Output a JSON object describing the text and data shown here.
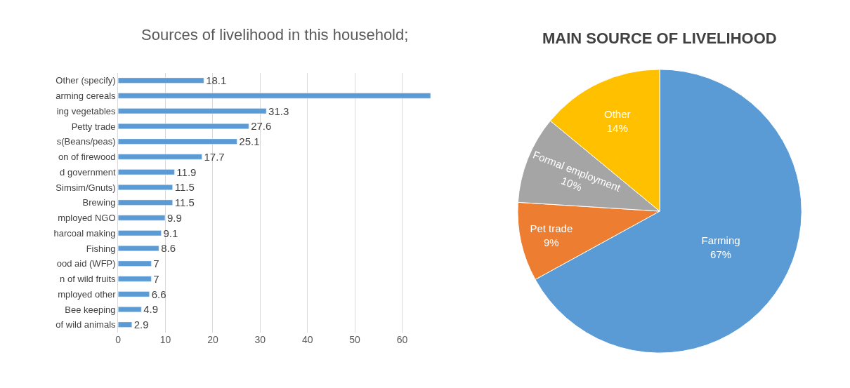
{
  "chart_data": [
    {
      "type": "bar",
      "orientation": "horizontal",
      "title": "Sources of livelihood in this household;",
      "categories": [
        "Other (specify)",
        "arming cereals",
        "ing vegetables",
        "Petty trade",
        "s(Beans/peas)",
        "on of firewood",
        "d government",
        "Simsim/Gnuts)",
        "Brewing",
        "mployed NGO",
        "harcoal making",
        "Fishing",
        "ood aid (WFP)",
        "n of wild fruits",
        "mployed other",
        "Bee keeping",
        "of wild animals"
      ],
      "values": [
        18.1,
        66,
        31.3,
        27.6,
        25.1,
        17.7,
        11.9,
        11.5,
        11.5,
        9.9,
        9.1,
        8.6,
        7,
        7,
        6.6,
        4.9,
        2.9
      ],
      "value_labels": [
        "18.1",
        null,
        "31.3",
        "27.6",
        "25.1",
        "17.7",
        "11.9",
        "11.5",
        "11.5",
        "9.9",
        "9.1",
        "8.6",
        "7",
        "7",
        "6.6",
        "4.9",
        "2.9"
      ],
      "color": "#5b9bd5",
      "xlim": [
        0,
        66
      ],
      "xticks": [
        0,
        10,
        20,
        30,
        40,
        50,
        60
      ],
      "grid": "x",
      "legend": false
    },
    {
      "type": "pie",
      "title": "MAIN SOURCE OF LIVELIHOOD",
      "categories": [
        "Farming",
        "Pet trade",
        "Formal employment",
        "Other"
      ],
      "values": [
        67,
        9,
        10,
        14
      ],
      "value_labels": [
        "67%",
        "9%",
        "10%",
        "14%"
      ],
      "colors": [
        "#5b9bd5",
        "#ed7d31",
        "#a5a5a5",
        "#ffc000"
      ],
      "legend": false
    }
  ]
}
